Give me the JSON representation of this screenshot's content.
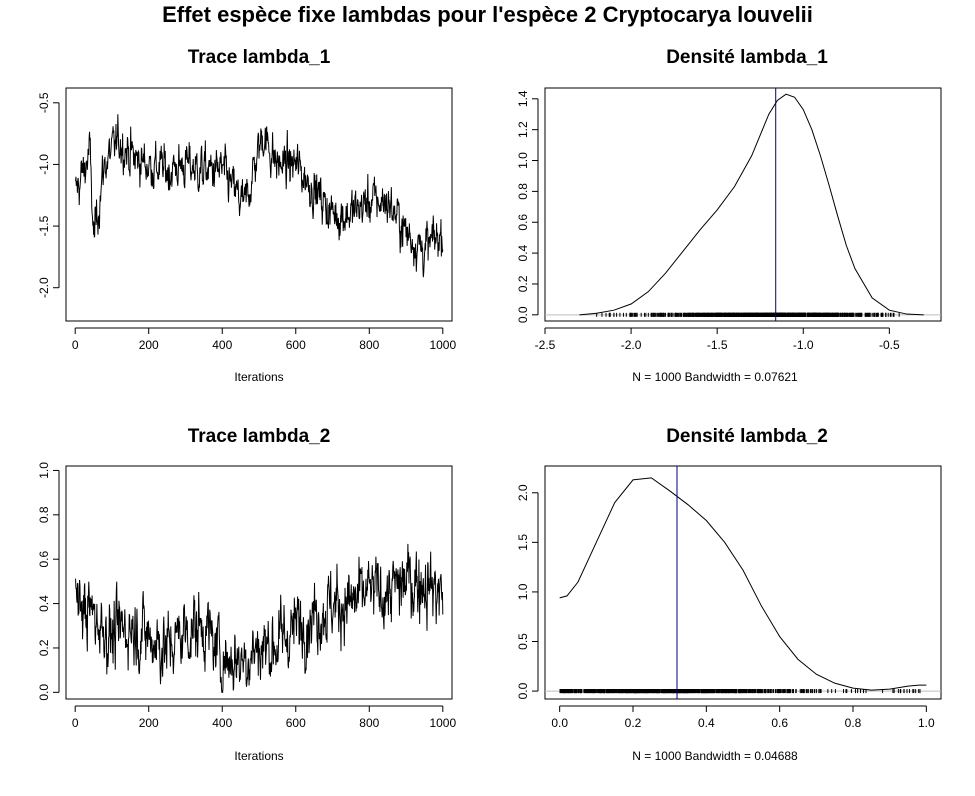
{
  "main_title": "Effet espèce fixe lambdas pour l'espèce  2 Cryptocarya louvelii",
  "colors": {
    "line": "#000000",
    "vline": "#000080",
    "baseline": "#bebebe"
  },
  "chart_data": [
    {
      "type": "line",
      "title": "Trace  lambda_1",
      "xlabel": "Iterations",
      "ylabel": "",
      "xlim": [
        -25,
        1025
      ],
      "ylim": [
        -2.27,
        -0.38
      ],
      "x_ticks": [
        0,
        200,
        400,
        600,
        800,
        1000
      ],
      "x_tick_labels": [
        "0",
        "200",
        "400",
        "600",
        "800",
        "1000"
      ],
      "y_ticks": [
        -2.0,
        -1.5,
        -1.0,
        -0.5
      ],
      "y_tick_labels": [
        "-2.0",
        "-1.5",
        "-1.0",
        "-0.5"
      ],
      "n_iterations": 1000,
      "trace_knots": {
        "x": [
          0,
          40,
          50,
          80,
          120,
          160,
          200,
          250,
          300,
          350,
          400,
          460,
          510,
          550,
          600,
          650,
          700,
          750,
          800,
          850,
          900,
          950,
          1000
        ],
        "y": [
          -1.25,
          -0.9,
          -1.6,
          -1.0,
          -0.8,
          -0.95,
          -1.0,
          -1.05,
          -1.0,
          -1.05,
          -1.05,
          -1.35,
          -0.75,
          -1.0,
          -1.0,
          -1.2,
          -1.4,
          -1.4,
          -1.3,
          -1.3,
          -1.55,
          -1.7,
          -1.55
        ]
      },
      "noise_sd": 0.14,
      "y_range_observed": [
        -2.2,
        -0.43
      ]
    },
    {
      "type": "line",
      "title": "Densité  lambda_1",
      "xlabel": "N = 1000   Bandwidth = 0.07621",
      "ylabel": "",
      "xlim": [
        -2.5,
        -0.2
      ],
      "ylim": [
        -0.04,
        1.47
      ],
      "x_ticks": [
        -2.5,
        -2.0,
        -1.5,
        -1.0,
        -0.5
      ],
      "x_tick_labels": [
        "-2.5",
        "-2.0",
        "-1.5",
        "-1.0",
        "-0.5"
      ],
      "y_ticks": [
        0.0,
        0.2,
        0.4,
        0.6,
        0.8,
        1.0,
        1.2,
        1.4
      ],
      "y_tick_labels": [
        "0.0",
        "0.2",
        "0.4",
        "0.6",
        "0.8",
        "1.0",
        "1.2",
        "1.4"
      ],
      "density": {
        "x": [
          -2.3,
          -2.2,
          -2.1,
          -2.0,
          -1.9,
          -1.8,
          -1.7,
          -1.6,
          -1.5,
          -1.4,
          -1.3,
          -1.2,
          -1.15,
          -1.1,
          -1.05,
          -1.0,
          -0.95,
          -0.9,
          -0.85,
          -0.8,
          -0.75,
          -0.7,
          -0.6,
          -0.5,
          -0.4,
          -0.3
        ],
        "y": [
          0.0,
          0.01,
          0.03,
          0.07,
          0.15,
          0.27,
          0.41,
          0.55,
          0.68,
          0.83,
          1.03,
          1.3,
          1.39,
          1.43,
          1.41,
          1.33,
          1.2,
          1.03,
          0.84,
          0.64,
          0.45,
          0.3,
          0.11,
          0.03,
          0.005,
          0.0
        ]
      },
      "vline": -1.16,
      "rug_range": [
        -2.2,
        -0.43
      ]
    },
    {
      "type": "line",
      "title": "Trace  lambda_2",
      "xlabel": "Iterations",
      "ylabel": "",
      "xlim": [
        -25,
        1025
      ],
      "ylim": [
        -0.03,
        1.02
      ],
      "x_ticks": [
        0,
        200,
        400,
        600,
        800,
        1000
      ],
      "x_tick_labels": [
        "0",
        "200",
        "400",
        "600",
        "800",
        "1000"
      ],
      "y_ticks": [
        0.0,
        0.2,
        0.4,
        0.6,
        0.8,
        1.0
      ],
      "y_tick_labels": [
        "0.0",
        "0.2",
        "0.4",
        "0.6",
        "0.8",
        "1.0"
      ],
      "n_iterations": 1000,
      "trace_knots": {
        "x": [
          0,
          50,
          100,
          150,
          200,
          250,
          300,
          350,
          400,
          450,
          500,
          550,
          600,
          650,
          700,
          750,
          800,
          850,
          900,
          950,
          1000
        ],
        "y": [
          0.4,
          0.35,
          0.25,
          0.3,
          0.25,
          0.2,
          0.28,
          0.3,
          0.15,
          0.15,
          0.2,
          0.22,
          0.3,
          0.35,
          0.4,
          0.4,
          0.45,
          0.45,
          0.5,
          0.5,
          0.45
        ]
      },
      "noise_sd": 0.12,
      "y_range_observed": [
        0.0,
        0.99
      ]
    },
    {
      "type": "line",
      "title": "Densité  lambda_2",
      "xlabel": "N = 1000   Bandwidth = 0.04688",
      "ylabel": "",
      "xlim": [
        -0.04,
        1.04
      ],
      "ylim": [
        -0.08,
        2.27
      ],
      "x_ticks": [
        0.0,
        0.2,
        0.4,
        0.6,
        0.8,
        1.0
      ],
      "x_tick_labels": [
        "0.0",
        "0.2",
        "0.4",
        "0.6",
        "0.8",
        "1.0"
      ],
      "y_ticks": [
        0.0,
        0.5,
        1.0,
        1.5,
        2.0
      ],
      "y_tick_labels": [
        "0.0",
        "0.5",
        "1.0",
        "1.5",
        "2.0"
      ],
      "density": {
        "x": [
          0.0,
          0.02,
          0.05,
          0.1,
          0.15,
          0.2,
          0.25,
          0.3,
          0.35,
          0.4,
          0.45,
          0.5,
          0.55,
          0.6,
          0.65,
          0.7,
          0.75,
          0.8,
          0.85,
          0.9,
          0.95,
          0.98,
          1.0
        ],
        "y": [
          0.94,
          0.96,
          1.1,
          1.5,
          1.9,
          2.13,
          2.15,
          2.02,
          1.88,
          1.72,
          1.5,
          1.22,
          0.86,
          0.55,
          0.32,
          0.17,
          0.08,
          0.03,
          0.01,
          0.02,
          0.05,
          0.06,
          0.06
        ]
      },
      "vline": 0.32,
      "rug_range": [
        0.0,
        0.99
      ]
    }
  ]
}
